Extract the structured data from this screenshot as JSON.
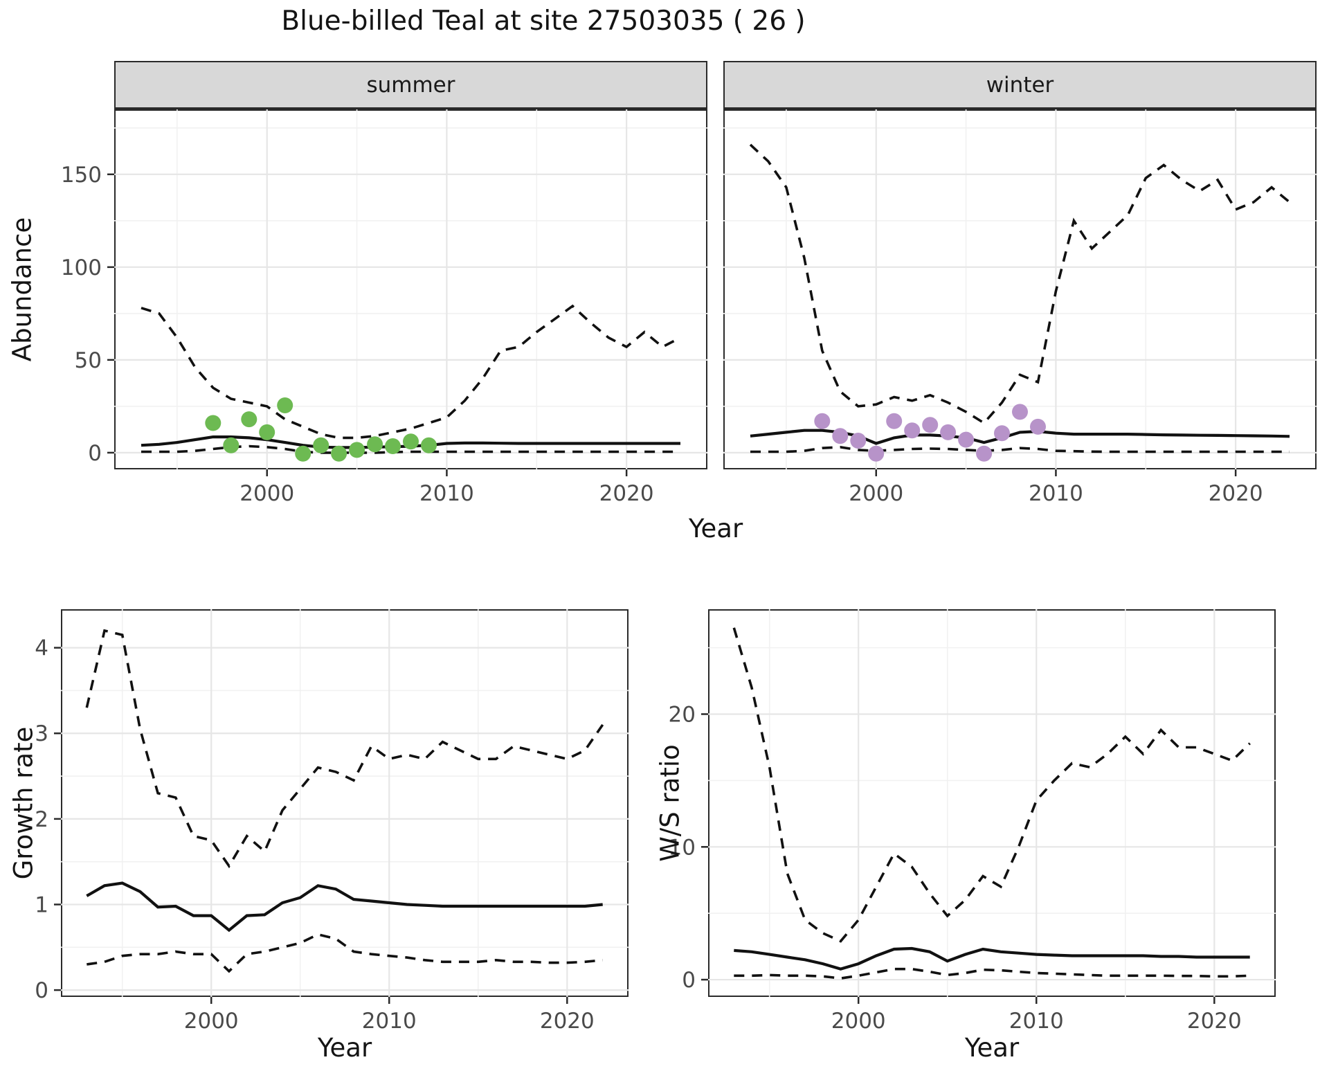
{
  "title": "Blue-billed Teal at site 27503035 ( 26 )",
  "facets": {
    "summer_label": "summer",
    "winter_label": "winter"
  },
  "axes": {
    "abundance_label": "Abundance",
    "year_top_label": "Year",
    "growth_label": "Growth rate",
    "year_bottom_left_label": "Year",
    "ws_label": "W/S ratio",
    "year_bottom_right_label": "Year"
  },
  "colors": {
    "summer_points": "#6dba52",
    "winter_points": "#b793c9",
    "line": "#111111",
    "strip_bg": "#d8d8d8",
    "panel_border": "#2a2a2a",
    "grid_major": "#e6e6e6",
    "grid_minor": "#f1f1f1",
    "axis_text": "#4a4a4a"
  },
  "chart_data": [
    {
      "id": "summer",
      "type": "line",
      "title": "summer",
      "xlabel": "Year",
      "ylabel": "Abundance",
      "xlim": [
        1991.5,
        2024.5
      ],
      "ylim": [
        -9,
        185
      ],
      "xticks": [
        2000,
        2010,
        2020
      ],
      "xminor": [
        1995,
        2005,
        2015
      ],
      "yticks": [
        0,
        50,
        100,
        150
      ],
      "yminor": [
        25,
        75,
        125,
        175
      ],
      "grid": true,
      "x": [
        1993,
        1994,
        1995,
        1996,
        1997,
        1998,
        1999,
        2000,
        2001,
        2002,
        2003,
        2004,
        2005,
        2006,
        2007,
        2008,
        2009,
        2010,
        2011,
        2012,
        2013,
        2014,
        2015,
        2016,
        2017,
        2018,
        2019,
        2020,
        2021,
        2022,
        2023
      ],
      "series": [
        {
          "name": "upper_95CI",
          "style": "dashed",
          "values": [
            78,
            75,
            62,
            46,
            35,
            29,
            27,
            25,
            18,
            14,
            10,
            8,
            8,
            9,
            11,
            13,
            16,
            19,
            28,
            40,
            55,
            57,
            65,
            72,
            79,
            70,
            62,
            57,
            65,
            57,
            62
          ]
        },
        {
          "name": "median",
          "style": "solid",
          "values": [
            4,
            4.5,
            5.5,
            7,
            8.5,
            8.5,
            8,
            7,
            5.5,
            4,
            3,
            2.8,
            2.8,
            3,
            3.2,
            3.5,
            4,
            5,
            5.2,
            5.2,
            5.1,
            5,
            5,
            5,
            5,
            5,
            5,
            5,
            5,
            5,
            5
          ]
        },
        {
          "name": "lower_95CI",
          "style": "dashed",
          "values": [
            0.5,
            0.5,
            0.5,
            1,
            2,
            3,
            3.5,
            3,
            2,
            0.5,
            0,
            0,
            0,
            0,
            0.3,
            0.5,
            0.5,
            0.5,
            0.5,
            0.5,
            0.5,
            0.5,
            0.5,
            0.5,
            0.5,
            0.5,
            0.5,
            0.5,
            0.5,
            0.5,
            0.5
          ]
        }
      ],
      "points": {
        "name": "observed-counts-summer",
        "color": "#6dba52",
        "x": [
          1997,
          1998,
          1999,
          2000,
          2001,
          2002,
          2003,
          2004,
          2005,
          2006,
          2007,
          2008,
          2009
        ],
        "y": [
          16,
          4,
          18,
          11,
          25.5,
          -0.5,
          4,
          -0.5,
          1.5,
          4.5,
          3.5,
          6,
          4
        ]
      }
    },
    {
      "id": "winter",
      "type": "line",
      "title": "winter",
      "xlabel": "Year",
      "ylabel": "Abundance",
      "xlim": [
        1991.5,
        2024.5
      ],
      "ylim": [
        -9,
        185
      ],
      "xticks": [
        2000,
        2010,
        2020
      ],
      "xminor": [
        1995,
        2005,
        2015
      ],
      "yticks": [
        0,
        50,
        100,
        150
      ],
      "yminor": [
        25,
        75,
        125,
        175
      ],
      "grid": true,
      "x": [
        1993,
        1994,
        1995,
        1996,
        1997,
        1998,
        1999,
        2000,
        2001,
        2002,
        2003,
        2004,
        2005,
        2006,
        2007,
        2008,
        2009,
        2010,
        2011,
        2012,
        2013,
        2014,
        2015,
        2016,
        2017,
        2018,
        2019,
        2020,
        2021,
        2022,
        2023
      ],
      "series": [
        {
          "name": "upper_95CI",
          "style": "dashed",
          "values": [
            166,
            157,
            143,
            105,
            55,
            33,
            25,
            26,
            30,
            28,
            31,
            27,
            22,
            16,
            27,
            42,
            38,
            87,
            125,
            110,
            119,
            128,
            148,
            155,
            147,
            141,
            147,
            131,
            135,
            143,
            135
          ]
        },
        {
          "name": "median",
          "style": "solid",
          "values": [
            9,
            10,
            11,
            12,
            12,
            11,
            9,
            5,
            8,
            9.5,
            9.5,
            9,
            8,
            5.5,
            8,
            11,
            11.5,
            10.5,
            10,
            10,
            10,
            10,
            9.8,
            9.6,
            9.5,
            9.4,
            9.3,
            9.2,
            9.1,
            9,
            8.8
          ]
        },
        {
          "name": "lower_95CI",
          "style": "dashed",
          "values": [
            0.5,
            0.5,
            0.5,
            1,
            2.5,
            3,
            1.5,
            1,
            1.5,
            2,
            2.2,
            2,
            1.5,
            1,
            1.5,
            2.5,
            2,
            1,
            0.8,
            0.6,
            0.5,
            0.5,
            0.5,
            0.5,
            0.5,
            0.5,
            0.5,
            0.5,
            0.5,
            0.5,
            0.5
          ]
        }
      ],
      "points": {
        "name": "observed-counts-winter",
        "color": "#b793c9",
        "x": [
          1997,
          1998,
          1999,
          2000,
          2001,
          2002,
          2003,
          2004,
          2005,
          2006,
          2007,
          2008,
          2009
        ],
        "y": [
          17,
          9,
          6.5,
          -0.5,
          17,
          12,
          15,
          11,
          7,
          -0.5,
          10.5,
          22,
          14
        ]
      }
    },
    {
      "id": "growth",
      "type": "line",
      "title": "",
      "xlabel": "Year",
      "ylabel": "Growth rate",
      "xlim": [
        1991.55,
        2023.45
      ],
      "ylim": [
        -0.08,
        4.45
      ],
      "xticks": [
        2000,
        2010,
        2020
      ],
      "xminor": [
        1995,
        2005,
        2015
      ],
      "yticks": [
        0,
        1,
        2,
        3,
        4
      ],
      "yminor": [
        0.5,
        1.5,
        2.5,
        3.5
      ],
      "grid": true,
      "x": [
        1993,
        1994,
        1995,
        1996,
        1997,
        1998,
        1999,
        2000,
        2001,
        2002,
        2003,
        2004,
        2005,
        2006,
        2007,
        2008,
        2009,
        2010,
        2011,
        2012,
        2013,
        2014,
        2015,
        2016,
        2017,
        2018,
        2019,
        2020,
        2021,
        2022
      ],
      "series": [
        {
          "name": "upper_95CI",
          "style": "dashed",
          "values": [
            3.3,
            4.2,
            4.15,
            3.05,
            2.3,
            2.25,
            1.8,
            1.75,
            1.45,
            1.8,
            1.62,
            2.1,
            2.35,
            2.6,
            2.55,
            2.45,
            2.85,
            2.7,
            2.75,
            2.7,
            2.9,
            2.8,
            2.7,
            2.7,
            2.85,
            2.8,
            2.75,
            2.7,
            2.8,
            3.1
          ]
        },
        {
          "name": "median",
          "style": "solid",
          "values": [
            1.1,
            1.22,
            1.25,
            1.15,
            0.97,
            0.98,
            0.87,
            0.87,
            0.7,
            0.87,
            0.88,
            1.02,
            1.08,
            1.22,
            1.18,
            1.06,
            1.04,
            1.02,
            1.0,
            0.99,
            0.98,
            0.98,
            0.98,
            0.98,
            0.98,
            0.98,
            0.98,
            0.98,
            0.98,
            1.0
          ]
        },
        {
          "name": "lower_95CI",
          "style": "dashed",
          "values": [
            0.3,
            0.33,
            0.4,
            0.42,
            0.42,
            0.45,
            0.42,
            0.42,
            0.22,
            0.42,
            0.45,
            0.5,
            0.55,
            0.65,
            0.6,
            0.45,
            0.42,
            0.4,
            0.38,
            0.35,
            0.33,
            0.33,
            0.33,
            0.35,
            0.33,
            0.33,
            0.32,
            0.32,
            0.33,
            0.35
          ]
        }
      ]
    },
    {
      "id": "ws",
      "type": "line",
      "title": "",
      "xlabel": "Year",
      "ylabel": "W/S ratio",
      "xlim": [
        1991.55,
        2023.45
      ],
      "ylim": [
        -1.3,
        27.9
      ],
      "xticks": [
        2000,
        2010,
        2020
      ],
      "xminor": [
        1995,
        2005,
        2015
      ],
      "yticks": [
        0,
        10,
        20
      ],
      "yminor": [
        5,
        15,
        25
      ],
      "grid": true,
      "x": [
        1993,
        1994,
        1995,
        1996,
        1997,
        1998,
        1999,
        2000,
        2001,
        2002,
        2003,
        2004,
        2005,
        2006,
        2007,
        2008,
        2009,
        2010,
        2011,
        2012,
        2013,
        2014,
        2015,
        2016,
        2017,
        2018,
        2019,
        2020,
        2021,
        2022
      ],
      "series": [
        {
          "name": "upper_95CI",
          "style": "dashed",
          "values": [
            26.5,
            22,
            16,
            8,
            4.5,
            3.5,
            2.9,
            4.5,
            7,
            9.5,
            8.5,
            6.5,
            4.8,
            6,
            7.8,
            7,
            10,
            13.5,
            15,
            16.3,
            16,
            17,
            18.3,
            17,
            18.8,
            17.5,
            17.5,
            17,
            16.5,
            17.8
          ]
        },
        {
          "name": "median",
          "style": "solid",
          "values": [
            2.2,
            2.1,
            1.9,
            1.7,
            1.5,
            1.2,
            0.8,
            1.2,
            1.8,
            2.3,
            2.35,
            2.1,
            1.4,
            1.9,
            2.3,
            2.1,
            2.0,
            1.9,
            1.85,
            1.8,
            1.8,
            1.8,
            1.8,
            1.8,
            1.75,
            1.75,
            1.7,
            1.7,
            1.7,
            1.7
          ]
        },
        {
          "name": "lower_95CI",
          "style": "dashed",
          "values": [
            0.3,
            0.3,
            0.35,
            0.3,
            0.3,
            0.25,
            0.1,
            0.3,
            0.55,
            0.8,
            0.8,
            0.6,
            0.35,
            0.5,
            0.75,
            0.7,
            0.6,
            0.5,
            0.45,
            0.4,
            0.35,
            0.3,
            0.3,
            0.3,
            0.3,
            0.28,
            0.28,
            0.25,
            0.25,
            0.3
          ]
        }
      ]
    }
  ]
}
